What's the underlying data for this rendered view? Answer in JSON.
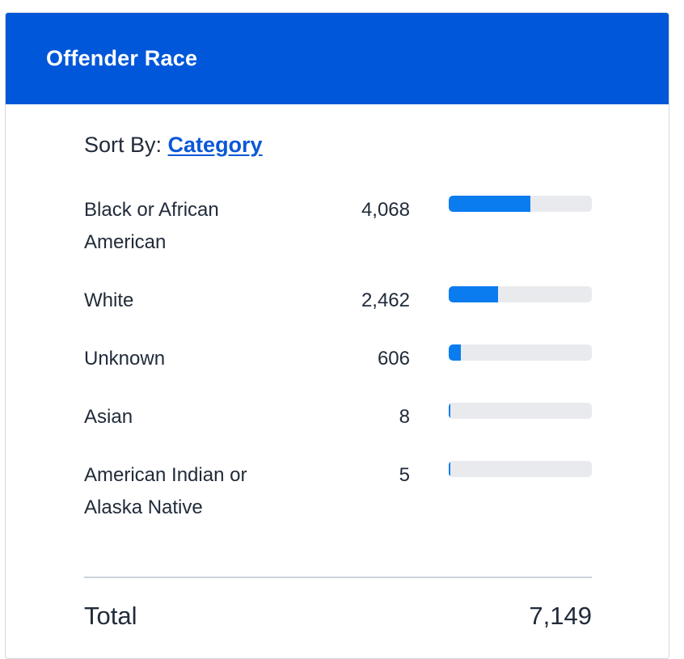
{
  "card": {
    "title": "Offender Race"
  },
  "sort": {
    "label": "Sort By:",
    "value": "Category"
  },
  "rows": [
    {
      "label": "Black or African American",
      "value": "4,068",
      "fraction": 0.569
    },
    {
      "label": "White",
      "value": "2,462",
      "fraction": 0.344
    },
    {
      "label": "Unknown",
      "value": "606",
      "fraction": 0.085
    },
    {
      "label": "Asian",
      "value": "8",
      "fraction": 0.001
    },
    {
      "label": "American Indian or Alaska Native",
      "value": "5",
      "fraction": 0.001
    }
  ],
  "total": {
    "label": "Total",
    "value": "7,149"
  },
  "colors": {
    "header": "#0057d9",
    "bar_fill": "#0a7cf0",
    "bar_track": "#e8eaed",
    "link": "#0a58d6"
  }
}
